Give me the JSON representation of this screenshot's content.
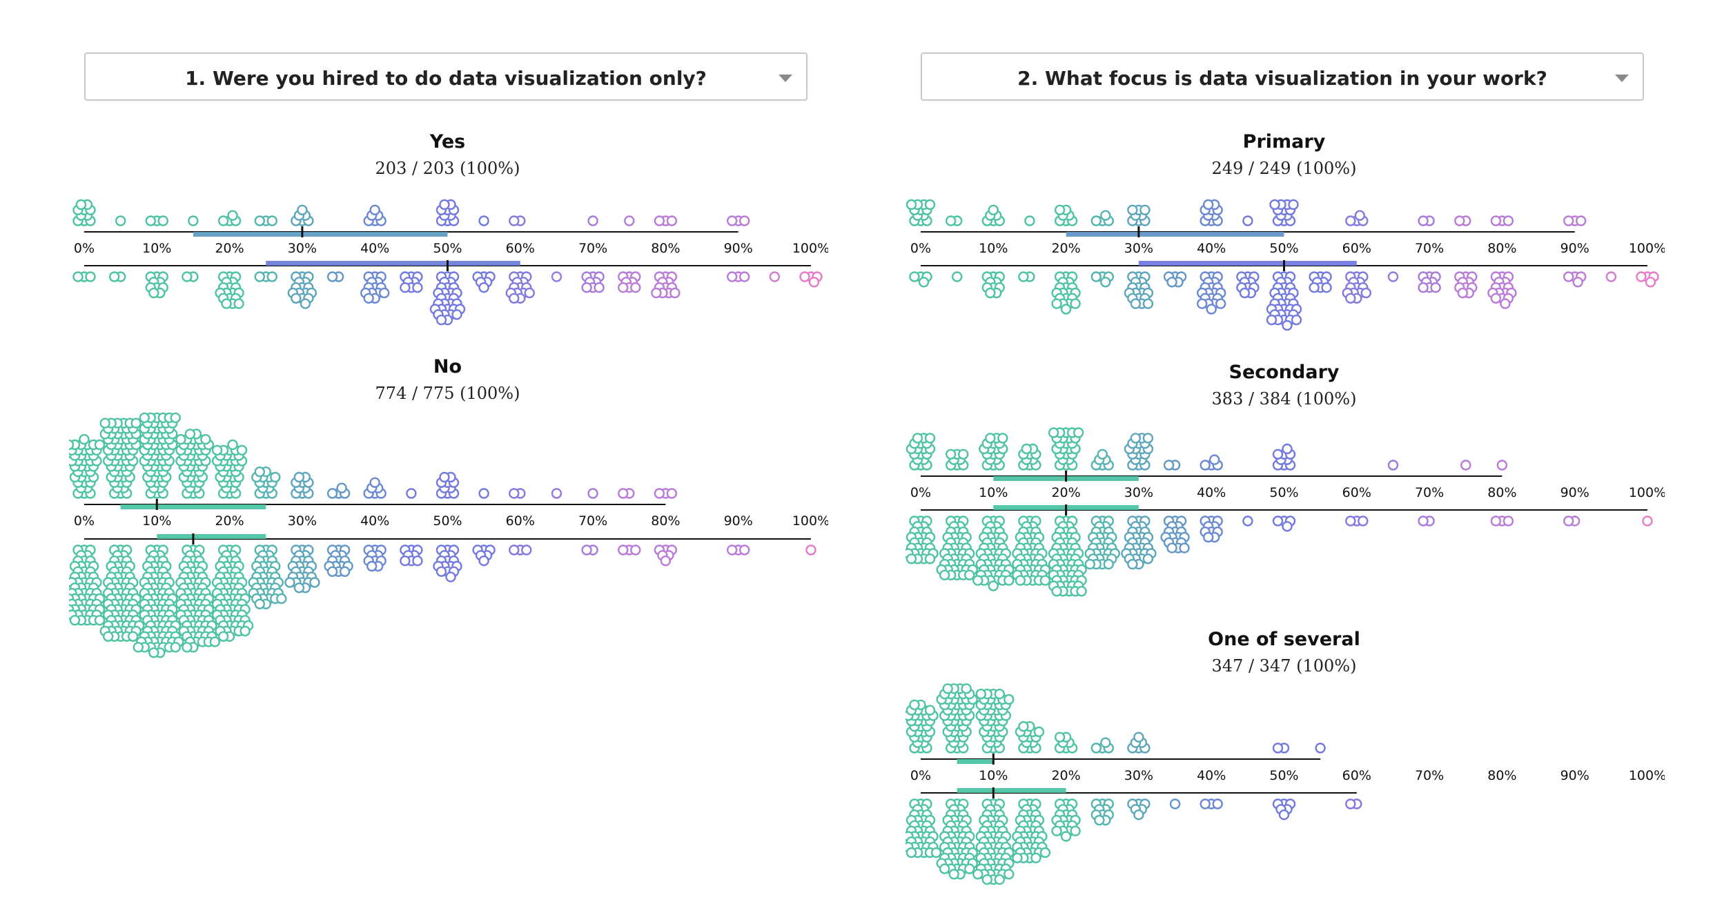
{
  "colors": {
    "teal": "#4dc3a3",
    "blue": "#7279e0",
    "purple": "#b97ad9",
    "pink": "#e77bc8",
    "axis": "#111111",
    "dropdown_border": "#c8c8c8"
  },
  "icons": {
    "dropdown_arrow": "chevron-down-icon"
  },
  "panels": [
    {
      "question": "1. Were you hired to do data visualization only?",
      "chart_data": {
        "type": "scatter",
        "subtype": "split beeswarm (top half: upper row, bottom half: lower row) with median and IQR bars",
        "x_unit": "%",
        "x_ticks": [
          "0%",
          "10%",
          "20%",
          "30%",
          "40%",
          "50%",
          "60%",
          "70%",
          "80%",
          "90%",
          "100%"
        ],
        "groups": [
          {
            "title": "Yes",
            "subtitle": "203 / 203 (100%)",
            "top": {
              "range": [
                0,
                90
              ],
              "q1": 15,
              "median": 30,
              "q3": 50,
              "bins": [
                [
                  0,
                  10
                ],
                [
                  5,
                  1
                ],
                [
                  10,
                  3
                ],
                [
                  15,
                  1
                ],
                [
                  20,
                  4
                ],
                [
                  25,
                  3
                ],
                [
                  30,
                  6
                ],
                [
                  40,
                  6
                ],
                [
                  50,
                  10
                ],
                [
                  55,
                  1
                ],
                [
                  60,
                  2
                ],
                [
                  70,
                  1
                ],
                [
                  75,
                  1
                ],
                [
                  80,
                  3
                ],
                [
                  90,
                  3
                ]
              ]
            },
            "bottom": {
              "range": [
                0,
                100
              ],
              "q1": 25,
              "median": 50,
              "q3": 60,
              "bins": [
                [
                  0,
                  3
                ],
                [
                  5,
                  2
                ],
                [
                  10,
                  10
                ],
                [
                  15,
                  2
                ],
                [
                  20,
                  18
                ],
                [
                  25,
                  3
                ],
                [
                  30,
                  16
                ],
                [
                  35,
                  2
                ],
                [
                  40,
                  14
                ],
                [
                  45,
                  8
                ],
                [
                  50,
                  30
                ],
                [
                  55,
                  6
                ],
                [
                  60,
                  14
                ],
                [
                  65,
                  1
                ],
                [
                  70,
                  8
                ],
                [
                  75,
                  8
                ],
                [
                  80,
                  12
                ],
                [
                  90,
                  3
                ],
                [
                  95,
                  1
                ],
                [
                  100,
                  4
                ]
              ]
            }
          },
          {
            "title": "No",
            "subtitle": "774 / 775 (100%)",
            "top": {
              "range": [
                0,
                80
              ],
              "q1": 5,
              "median": 10,
              "q3": 25,
              "bins": [
                [
                  0,
                  40
                ],
                [
                  5,
                  60
                ],
                [
                  10,
                  64
                ],
                [
                  15,
                  45
                ],
                [
                  20,
                  34
                ],
                [
                  25,
                  14
                ],
                [
                  30,
                  10
                ],
                [
                  35,
                  4
                ],
                [
                  40,
                  6
                ],
                [
                  45,
                  1
                ],
                [
                  50,
                  10
                ],
                [
                  55,
                  1
                ],
                [
                  60,
                  2
                ],
                [
                  65,
                  1
                ],
                [
                  70,
                  1
                ],
                [
                  75,
                  2
                ],
                [
                  80,
                  3
                ]
              ]
            },
            "bottom": {
              "range": [
                0,
                100
              ],
              "q1": 10,
              "median": 15,
              "q3": 25,
              "bins": [
                [
                  0,
                  60
                ],
                [
                  5,
                  75
                ],
                [
                  10,
                  90
                ],
                [
                  15,
                  80
                ],
                [
                  20,
                  70
                ],
                [
                  25,
                  40
                ],
                [
                  30,
                  26
                ],
                [
                  35,
                  15
                ],
                [
                  40,
                  10
                ],
                [
                  45,
                  8
                ],
                [
                  50,
                  16
                ],
                [
                  55,
                  6
                ],
                [
                  60,
                  3
                ],
                [
                  70,
                  2
                ],
                [
                  75,
                  3
                ],
                [
                  80,
                  6
                ],
                [
                  90,
                  3
                ],
                [
                  100,
                  1
                ]
              ]
            }
          }
        ]
      }
    },
    {
      "question": "2. What focus is data visualization in your work?",
      "chart_data": {
        "type": "scatter",
        "subtype": "split beeswarm (top half: upper row, bottom half: lower row) with median and IQR bars",
        "x_unit": "%",
        "x_ticks": [
          "0%",
          "10%",
          "20%",
          "30%",
          "40%",
          "50%",
          "60%",
          "70%",
          "80%",
          "90%",
          "100%"
        ],
        "groups": [
          {
            "title": "Primary",
            "subtitle": "249 / 249 (100%)",
            "top": {
              "range": [
                0,
                90
              ],
              "q1": 20,
              "median": 30,
              "q3": 50,
              "bins": [
                [
                  0,
                  12
                ],
                [
                  5,
                  2
                ],
                [
                  10,
                  6
                ],
                [
                  15,
                  1
                ],
                [
                  20,
                  7
                ],
                [
                  25,
                  4
                ],
                [
                  30,
                  8
                ],
                [
                  40,
                  10
                ],
                [
                  45,
                  1
                ],
                [
                  50,
                  12
                ],
                [
                  60,
                  4
                ],
                [
                  70,
                  2
                ],
                [
                  75,
                  2
                ],
                [
                  80,
                  3
                ],
                [
                  90,
                  3
                ]
              ]
            },
            "bottom": {
              "range": [
                0,
                100
              ],
              "q1": 30,
              "median": 50,
              "q3": 60,
              "bins": [
                [
                  0,
                  4
                ],
                [
                  5,
                  1
                ],
                [
                  10,
                  10
                ],
                [
                  15,
                  2
                ],
                [
                  20,
                  20
                ],
                [
                  25,
                  4
                ],
                [
                  30,
                  18
                ],
                [
                  35,
                  5
                ],
                [
                  40,
                  20
                ],
                [
                  45,
                  10
                ],
                [
                  50,
                  34
                ],
                [
                  55,
                  8
                ],
                [
                  60,
                  14
                ],
                [
                  65,
                  1
                ],
                [
                  70,
                  8
                ],
                [
                  75,
                  10
                ],
                [
                  80,
                  16
                ],
                [
                  90,
                  4
                ],
                [
                  95,
                  1
                ],
                [
                  100,
                  4
                ]
              ]
            }
          },
          {
            "title": "Secondary",
            "subtitle": "383 / 384 (100%)",
            "top": {
              "range": [
                0,
                80
              ],
              "q1": 10,
              "median": 20,
              "q3": 30,
              "bins": [
                [
                  0,
                  18
                ],
                [
                  5,
                  8
                ],
                [
                  10,
                  18
                ],
                [
                  15,
                  10
                ],
                [
                  20,
                  24
                ],
                [
                  25,
                  6
                ],
                [
                  30,
                  18
                ],
                [
                  35,
                  2
                ],
                [
                  40,
                  4
                ],
                [
                  50,
                  9
                ],
                [
                  65,
                  1
                ],
                [
                  75,
                  1
                ],
                [
                  80,
                  1
                ]
              ]
            },
            "bottom": {
              "range": [
                0,
                100
              ],
              "q1": 10,
              "median": 20,
              "q3": 30,
              "bins": [
                [
                  0,
                  28
                ],
                [
                  5,
                  44
                ],
                [
                  10,
                  50
                ],
                [
                  15,
                  48
                ],
                [
                  20,
                  58
                ],
                [
                  25,
                  32
                ],
                [
                  30,
                  30
                ],
                [
                  35,
                  18
                ],
                [
                  40,
                  10
                ],
                [
                  45,
                  1
                ],
                [
                  50,
                  4
                ],
                [
                  60,
                  3
                ],
                [
                  70,
                  2
                ],
                [
                  80,
                  3
                ],
                [
                  90,
                  2
                ],
                [
                  100,
                  1
                ]
              ]
            }
          },
          {
            "title": "One of several",
            "subtitle": "347 / 347 (100%)",
            "top": {
              "range": [
                0,
                55
              ],
              "q1": 5,
              "median": 10,
              "q3": 10,
              "bins": [
                [
                  0,
                  30
                ],
                [
                  5,
                  48
                ],
                [
                  10,
                  42
                ],
                [
                  15,
                  14
                ],
                [
                  20,
                  7
                ],
                [
                  25,
                  4
                ],
                [
                  30,
                  6
                ],
                [
                  50,
                  2
                ],
                [
                  55,
                  1
                ]
              ]
            },
            "bottom": {
              "range": [
                0,
                60
              ],
              "q1": 5,
              "median": 10,
              "q3": 20,
              "bins": [
                [
                  0,
                  38
                ],
                [
                  5,
                  56
                ],
                [
                  10,
                  62
                ],
                [
                  15,
                  42
                ],
                [
                  20,
                  20
                ],
                [
                  25,
                  10
                ],
                [
                  30,
                  6
                ],
                [
                  35,
                  1
                ],
                [
                  40,
                  3
                ],
                [
                  50,
                  6
                ],
                [
                  60,
                  2
                ]
              ]
            }
          }
        ]
      }
    }
  ]
}
